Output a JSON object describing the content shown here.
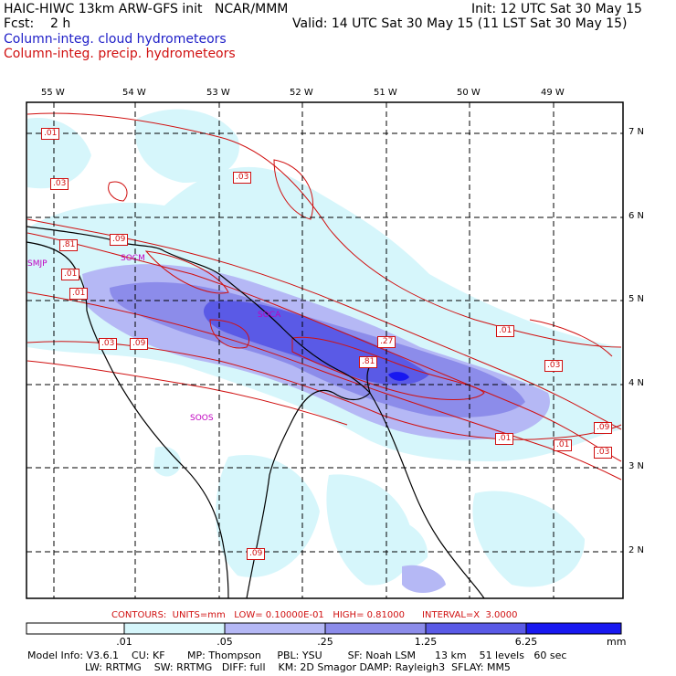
{
  "header": {
    "title": "HAIC-HIWC 13km ARW-GFS init   NCAR/MMM",
    "fcst": "Fcst:    2 h",
    "init": "Init: 12 UTC Sat 30 May 15",
    "valid": "Valid: 14 UTC Sat 30 May 15 (11 LST Sat 30 May 15)",
    "legend_cloud": "Column-integ. cloud hydrometeors",
    "legend_precip": "Column-integ. precip. hydrometeors"
  },
  "colors": {
    "cloud_text": "#2020c8",
    "precip_text": "#d01010",
    "fill_levels": [
      "#ffffff",
      "#d6f6fb",
      "#b5b8f5",
      "#8c8cea",
      "#5a5ae6",
      "#1818f0"
    ]
  },
  "map": {
    "lon_labels": [
      "55 W",
      "54 W",
      "53 W",
      "52 W",
      "51 W",
      "50 W",
      "49 W"
    ],
    "lat_labels": [
      "7 N",
      "6 N",
      "5 N",
      "4 N",
      "3 N",
      "2 N"
    ],
    "station_labels": [
      "SMJP",
      "SOCM",
      "SOCA",
      "SOOS"
    ],
    "contour_labels": [
      ".01",
      ".03",
      ".81",
      ".09",
      ".01",
      ".01",
      ".03",
      ".09",
      ".03",
      ".01",
      ".27",
      ".81",
      ".01",
      ".03",
      ".09",
      ".01",
      ".03",
      ".09"
    ]
  },
  "colorbar": {
    "labels": [
      ".01",
      ".05",
      ".25",
      "1.25",
      "6.25"
    ],
    "unit": "mm"
  },
  "footer": {
    "contours": "CONTOURS:  UNITS=mm   LOW= 0.10000E-01   HIGH= 0.81000      INTERVAL=X  3.0000",
    "line1": "Model Info: V3.6.1    CU: KF       MP: Thompson     PBL: YSU        SF: Noah LSM      13 km    51 levels   60 sec",
    "line2": "                  LW: RRTMG    SW: RRTMG   DIFF: full    KM: 2D Smagor DAMP: Rayleigh3  SFLAY: MM5"
  }
}
